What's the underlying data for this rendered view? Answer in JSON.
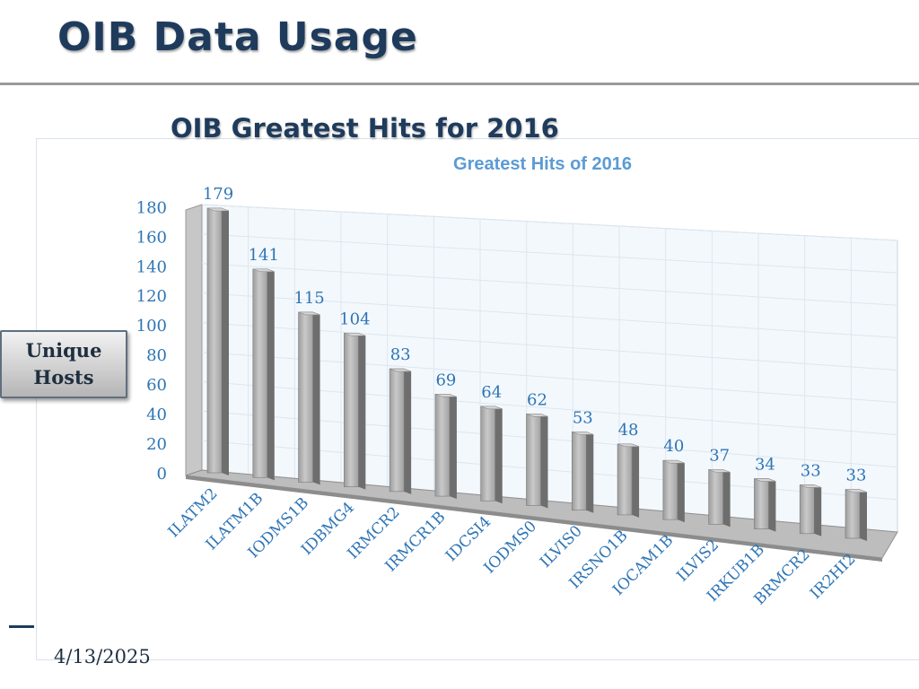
{
  "slide": {
    "title": "OIB Data Usage",
    "date": "4/13/2025"
  },
  "chart_data": {
    "type": "bar",
    "heading": "OIB Greatest Hits for 2016",
    "title": "Greatest Hits of 2016",
    "ylabel": "Unique\nHosts",
    "xlabel": "",
    "categories": [
      "ILATM2",
      "ILATM1B",
      "IODMS1B",
      "IDBMG4",
      "IRMCR2",
      "IRMCR1B",
      "IDCSI4",
      "IODMS0",
      "ILVIS0",
      "IRSNO1B",
      "IOCAM1B",
      "ILVIS2",
      "IRKUB1B",
      "BRMCR2",
      "IR2HI2"
    ],
    "values": [
      179,
      141,
      115,
      104,
      83,
      69,
      64,
      62,
      53,
      48,
      40,
      37,
      34,
      33,
      33
    ],
    "ylim": [
      0,
      180
    ],
    "yticks": [
      0,
      20,
      40,
      60,
      80,
      100,
      120,
      140,
      160,
      180
    ],
    "grid": true,
    "style": "3d-perspective",
    "colors": {
      "bar": "#a8a8a8",
      "text": "#2e75b6",
      "title": "#5b9bd5",
      "grid": "#dde6ef",
      "wall": "#f3f8fc"
    }
  }
}
